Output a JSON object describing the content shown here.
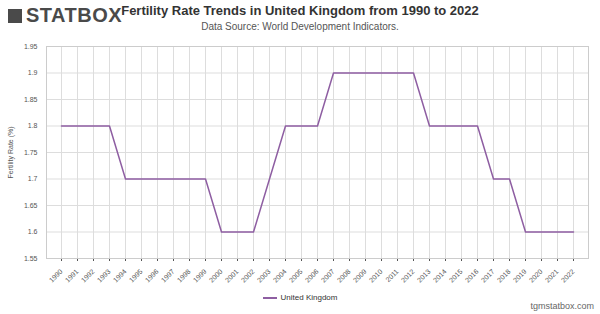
{
  "chart_data": {
    "type": "line",
    "logo": "STATBOX",
    "title": "Fertility Rate Trends in United Kingdom from 1990 to 2022",
    "subtitle": "Data Source: World Development Indicators.",
    "y_label": "Fertility Rate (%)",
    "watermark": "tgmstatbox.com",
    "x": [
      "1990",
      "1991",
      "1992",
      "1993",
      "1994",
      "1995",
      "1996",
      "1997",
      "1998",
      "1999",
      "2000",
      "2001",
      "2002",
      "2003",
      "2004",
      "2005",
      "2006",
      "2007",
      "2008",
      "2009",
      "2010",
      "2011",
      "2012",
      "2013",
      "2014",
      "2015",
      "2016",
      "2017",
      "2018",
      "2019",
      "2020",
      "2021",
      "2022"
    ],
    "series": [
      {
        "name": "United Kingdom",
        "color": "#8e5ea2",
        "values": [
          1.8,
          1.8,
          1.8,
          1.8,
          1.7,
          1.7,
          1.7,
          1.7,
          1.7,
          1.7,
          1.6,
          1.6,
          1.6,
          1.7,
          1.8,
          1.8,
          1.8,
          1.9,
          1.9,
          1.9,
          1.9,
          1.9,
          1.9,
          1.8,
          1.8,
          1.8,
          1.8,
          1.7,
          1.7,
          1.6,
          1.6,
          1.6,
          1.6
        ]
      }
    ],
    "ylim": [
      1.55,
      1.95
    ],
    "yticks": [
      1.55,
      1.6,
      1.65,
      1.7,
      1.75,
      1.8,
      1.85,
      1.9,
      1.95
    ],
    "grid": true,
    "legend": "bottom"
  }
}
